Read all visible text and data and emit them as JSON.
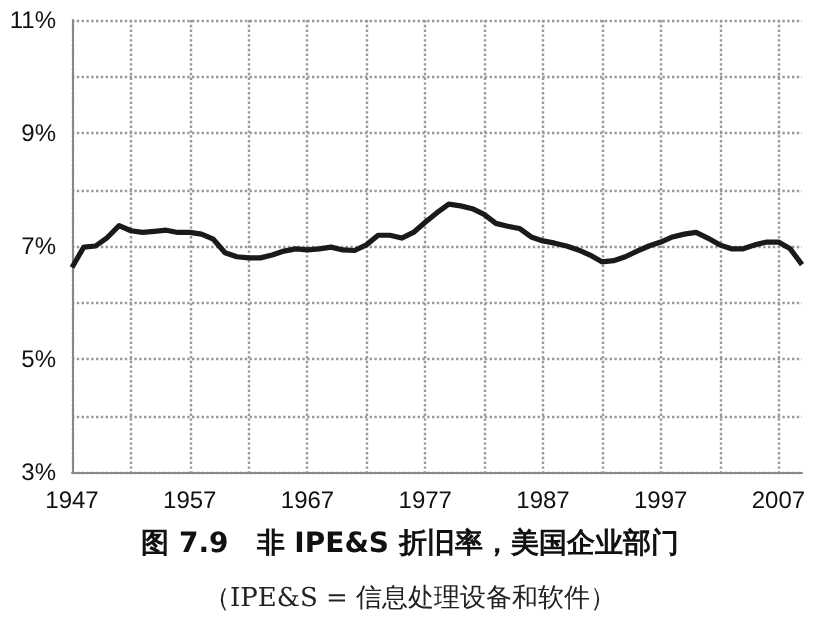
{
  "chart_data": {
    "type": "line",
    "title": "图 7.9　非 IPE&S 折旧率，美国企业部门",
    "subtitle": "（IPE&S = 信息处理设备和软件）",
    "x": [
      1947,
      1948,
      1949,
      1950,
      1951,
      1952,
      1953,
      1954,
      1955,
      1956,
      1957,
      1958,
      1959,
      1960,
      1961,
      1962,
      1963,
      1964,
      1965,
      1966,
      1967,
      1968,
      1969,
      1970,
      1971,
      1972,
      1973,
      1974,
      1975,
      1976,
      1977,
      1978,
      1979,
      1980,
      1981,
      1982,
      1983,
      1984,
      1985,
      1986,
      1987,
      1988,
      1989,
      1990,
      1991,
      1992,
      1993,
      1994,
      1995,
      1996,
      1997,
      1998,
      1999,
      2000,
      2001,
      2002,
      2003,
      2004,
      2005,
      2006,
      2007,
      2008,
      2009
    ],
    "series": [
      {
        "color": "#1a1a1a",
        "values": [
          6.62,
          6.98,
          7.0,
          7.15,
          7.36,
          7.27,
          7.24,
          7.26,
          7.28,
          7.24,
          7.24,
          7.21,
          7.12,
          6.88,
          6.81,
          6.79,
          6.79,
          6.84,
          6.91,
          6.95,
          6.93,
          6.95,
          6.98,
          6.93,
          6.92,
          7.02,
          7.19,
          7.19,
          7.14,
          7.24,
          7.42,
          7.59,
          7.74,
          7.71,
          7.66,
          7.56,
          7.4,
          7.35,
          7.31,
          7.16,
          7.09,
          7.05,
          7.0,
          6.93,
          6.84,
          6.72,
          6.74,
          6.81,
          6.91,
          7.0,
          7.07,
          7.16,
          7.21,
          7.24,
          7.14,
          7.02,
          6.95,
          6.95,
          7.02,
          7.07,
          7.07,
          6.95,
          6.67
        ]
      }
    ],
    "xlim": [
      1947,
      2009
    ],
    "xticks": [
      1947,
      {
        "value": 1952,
        "label": null
      },
      1957,
      {
        "value": 1962,
        "label": null
      },
      1967,
      {
        "value": 1972,
        "label": null
      },
      1977,
      {
        "value": 1982,
        "label": null
      },
      1987,
      {
        "value": 1992,
        "label": null
      },
      1997,
      {
        "value": 2002,
        "label": null
      },
      2007
    ],
    "ylim": [
      3,
      11
    ],
    "yticks": [
      {
        "value": 3,
        "label": "3%"
      },
      {
        "value": 4,
        "label": null
      },
      {
        "value": 5,
        "label": "5%"
      },
      {
        "value": 6,
        "label": null
      },
      {
        "value": 7,
        "label": "7%"
      },
      {
        "value": 8,
        "label": null
      },
      {
        "value": 9,
        "label": "9%"
      },
      {
        "value": 10,
        "label": null
      },
      {
        "value": 11,
        "label": "11%"
      }
    ],
    "grid": true,
    "marker": "none",
    "line_style": "solid"
  }
}
